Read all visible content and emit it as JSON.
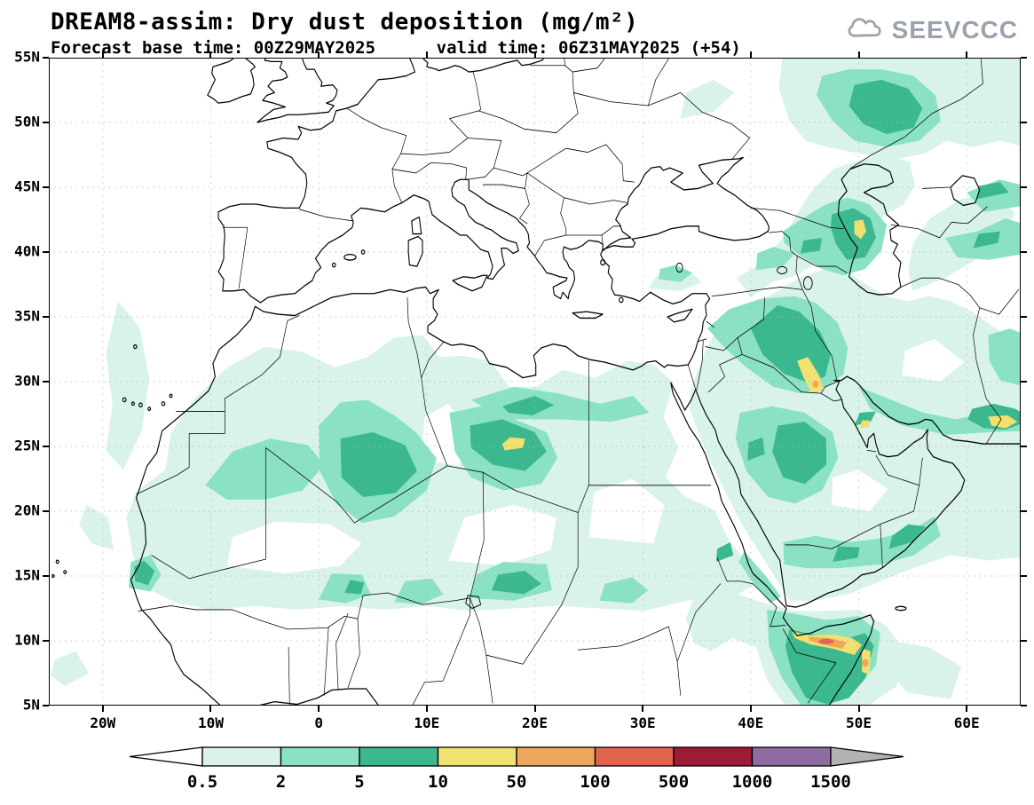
{
  "header": {
    "title_line1": "DREAM8-assim: Dry dust deposition (mg/m²)",
    "title_line2": "Forecast base time: 00Z29MAY2025      valid time: 06Z31MAY2025 (+54)",
    "logo_text": "SEEVCCC"
  },
  "chart_data": {
    "type": "heatmap",
    "title": "DREAM8-assim: Dry dust deposition (mg/m²)",
    "model": "DREAM8-assim",
    "variable": "Dry dust deposition",
    "units": "mg/m²",
    "forecast_base_time": "00Z29MAY2025",
    "valid_time": "06Z31MAY2025",
    "forecast_offset_hours": 54,
    "map_extent": {
      "lon_min": -25,
      "lon_max": 65,
      "lat_min": 5,
      "lat_max": 55
    },
    "grid": "dotted, 5° latitude / 10° longitude",
    "lat_axis": {
      "ticks": [
        {
          "label": "55N",
          "deg": 55
        },
        {
          "label": "50N",
          "deg": 50
        },
        {
          "label": "45N",
          "deg": 45
        },
        {
          "label": "40N",
          "deg": 40
        },
        {
          "label": "35N",
          "deg": 35
        },
        {
          "label": "30N",
          "deg": 30
        },
        {
          "label": "25N",
          "deg": 25
        },
        {
          "label": "20N",
          "deg": 20
        },
        {
          "label": "15N",
          "deg": 15
        },
        {
          "label": "10N",
          "deg": 10
        },
        {
          "label": "5N",
          "deg": 5
        }
      ]
    },
    "lon_axis": {
      "ticks": [
        {
          "label": "20W",
          "deg": -20
        },
        {
          "label": "10W",
          "deg": -10
        },
        {
          "label": "0",
          "deg": 0
        },
        {
          "label": "10E",
          "deg": 10
        },
        {
          "label": "20E",
          "deg": 20
        },
        {
          "label": "30E",
          "deg": 30
        },
        {
          "label": "40E",
          "deg": 40
        },
        {
          "label": "50E",
          "deg": 50
        },
        {
          "label": "60E",
          "deg": 60
        }
      ]
    },
    "legend": {
      "boundary_labels": [
        "0.5",
        "2",
        "5",
        "10",
        "50",
        "100",
        "500",
        "1000",
        "1500"
      ],
      "band_colors": [
        "#d9f2ea",
        "#8ae2c3",
        "#3cb890",
        "#f1e170",
        "#efa75e",
        "#e0654c",
        "#9c1b35",
        "#8e6ca1"
      ],
      "under_color": "#ffffff",
      "over_color": "#b2b2b2",
      "legend_position": "bottom"
    },
    "notable_features": [
      {
        "region": "Horn of Africa / Gulf of Aden (Somalia)",
        "approx_lon": [
          43,
          51
        ],
        "approx_lat": [
          7,
          12
        ],
        "max_band": "100-500 mg/m²"
      },
      {
        "region": "Iraq / Kuwait",
        "approx_lon": [
          44,
          47
        ],
        "approx_lat": [
          29,
          32
        ],
        "max_band": "50-100 mg/m²"
      },
      {
        "region": "Central Sahara (SE Libya / N Chad)",
        "approx_lon": [
          17,
          19
        ],
        "approx_lat": [
          24.5,
          25.8
        ],
        "max_band": "10-50 mg/m²"
      },
      {
        "region": "West Caspian coast (Azerbaijan)",
        "approx_lon": [
          49.5,
          50.7
        ],
        "approx_lat": [
          41,
          42.5
        ],
        "max_band": "10-50 mg/m²"
      },
      {
        "region": "Makran coast (SE Iran / Pakistan)",
        "approx_lon": [
          62,
          64.7
        ],
        "approx_lat": [
          26,
          27.5
        ],
        "max_band": "10-50 mg/m²"
      },
      {
        "region": "Qatar / Bahrain",
        "approx_lon": [
          50,
          51.2
        ],
        "approx_lat": [
          25.5,
          27.5
        ],
        "max_band": "10-50 mg/m²"
      },
      {
        "region": "NW Kazakhstan north of Caspian",
        "approx_lon": [
          46,
          58
        ],
        "approx_lat": [
          48,
          54
        ],
        "max_band": "5-10 mg/m²"
      },
      {
        "region": "Central Saudi Arabia",
        "approx_lon": [
          39,
          48
        ],
        "approx_lat": [
          20,
          28
        ],
        "max_band": "5-10 mg/m²"
      },
      {
        "region": "Sahel band",
        "approx_lon": [
          -17,
          22
        ],
        "approx_lat": [
          13,
          16
        ],
        "max_band": "5-10 mg/m²"
      }
    ]
  }
}
